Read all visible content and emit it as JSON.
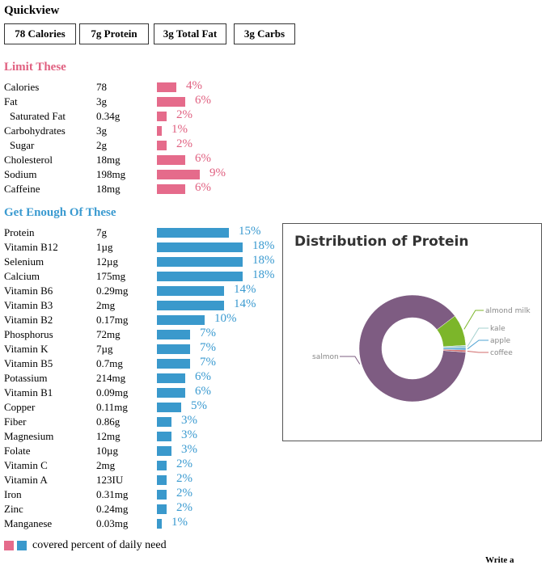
{
  "quickview": {
    "title": "Quickview",
    "items": [
      "78 Calories",
      "7g Protein",
      "3g Total Fat",
      "3g Carbs"
    ]
  },
  "limit_section": {
    "heading": "Limit These",
    "rows": [
      {
        "name": "Calories",
        "amount": "78",
        "percent": 4,
        "percent_label": "4%",
        "indent": false
      },
      {
        "name": "Fat",
        "amount": "3g",
        "percent": 6,
        "percent_label": "6%",
        "indent": false
      },
      {
        "name": "Saturated Fat",
        "amount": "0.34g",
        "percent": 2,
        "percent_label": "2%",
        "indent": true
      },
      {
        "name": "Carbohydrates",
        "amount": "3g",
        "percent": 1,
        "percent_label": "1%",
        "indent": false
      },
      {
        "name": "Sugar",
        "amount": "2g",
        "percent": 2,
        "percent_label": "2%",
        "indent": true
      },
      {
        "name": "Cholesterol",
        "amount": "18mg",
        "percent": 6,
        "percent_label": "6%",
        "indent": false
      },
      {
        "name": "Sodium",
        "amount": "198mg",
        "percent": 9,
        "percent_label": "9%",
        "indent": false
      },
      {
        "name": "Caffeine",
        "amount": "18mg",
        "percent": 6,
        "percent_label": "6%",
        "indent": false
      }
    ]
  },
  "enough_section": {
    "heading": "Get Enough Of These",
    "rows": [
      {
        "name": "Protein",
        "amount": "7g",
        "percent": 15,
        "percent_label": "15%"
      },
      {
        "name": "Vitamin B12",
        "amount": "1µg",
        "percent": 18,
        "percent_label": "18%"
      },
      {
        "name": "Selenium",
        "amount": "12µg",
        "percent": 18,
        "percent_label": "18%"
      },
      {
        "name": "Calcium",
        "amount": "175mg",
        "percent": 18,
        "percent_label": "18%"
      },
      {
        "name": "Vitamin B6",
        "amount": "0.29mg",
        "percent": 14,
        "percent_label": "14%"
      },
      {
        "name": "Vitamin B3",
        "amount": "2mg",
        "percent": 14,
        "percent_label": "14%"
      },
      {
        "name": "Vitamin B2",
        "amount": "0.17mg",
        "percent": 10,
        "percent_label": "10%"
      },
      {
        "name": "Phosphorus",
        "amount": "72mg",
        "percent": 7,
        "percent_label": "7%"
      },
      {
        "name": "Vitamin K",
        "amount": "7µg",
        "percent": 7,
        "percent_label": "7%"
      },
      {
        "name": "Vitamin B5",
        "amount": "0.7mg",
        "percent": 7,
        "percent_label": "7%"
      },
      {
        "name": "Potassium",
        "amount": "214mg",
        "percent": 6,
        "percent_label": "6%"
      },
      {
        "name": "Vitamin B1",
        "amount": "0.09mg",
        "percent": 6,
        "percent_label": "6%"
      },
      {
        "name": "Copper",
        "amount": "0.11mg",
        "percent": 5,
        "percent_label": "5%"
      },
      {
        "name": "Fiber",
        "amount": "0.86g",
        "percent": 3,
        "percent_label": "3%"
      },
      {
        "name": "Magnesium",
        "amount": "12mg",
        "percent": 3,
        "percent_label": "3%"
      },
      {
        "name": "Folate",
        "amount": "10µg",
        "percent": 3,
        "percent_label": "3%"
      },
      {
        "name": "Vitamin C",
        "amount": "2mg",
        "percent": 2,
        "percent_label": "2%"
      },
      {
        "name": "Vitamin A",
        "amount": "123IU",
        "percent": 2,
        "percent_label": "2%"
      },
      {
        "name": "Iron",
        "amount": "0.31mg",
        "percent": 2,
        "percent_label": "2%"
      },
      {
        "name": "Zinc",
        "amount": "0.24mg",
        "percent": 2,
        "percent_label": "2%"
      },
      {
        "name": "Manganese",
        "amount": "0.03mg",
        "percent": 1,
        "percent_label": "1%"
      }
    ]
  },
  "legend": {
    "text": "covered percent of daily need",
    "colors": [
      "#e56b8b",
      "#3a99cc"
    ]
  },
  "footer_partial": "Write a",
  "chart_data": {
    "type": "pie",
    "title": "Distribution of Protein",
    "donut": true,
    "slices": [
      {
        "label": "salmon",
        "value": 88.5,
        "color": "#7e5c82"
      },
      {
        "label": "almond milk",
        "value": 9.5,
        "color": "#7cb62a"
      },
      {
        "label": "kale",
        "value": 0.7,
        "color": "#a4d0cf"
      },
      {
        "label": "apple",
        "value": 0.7,
        "color": "#4fa3d3"
      },
      {
        "label": "coffee",
        "value": 0.6,
        "color": "#d06a6a"
      }
    ]
  }
}
